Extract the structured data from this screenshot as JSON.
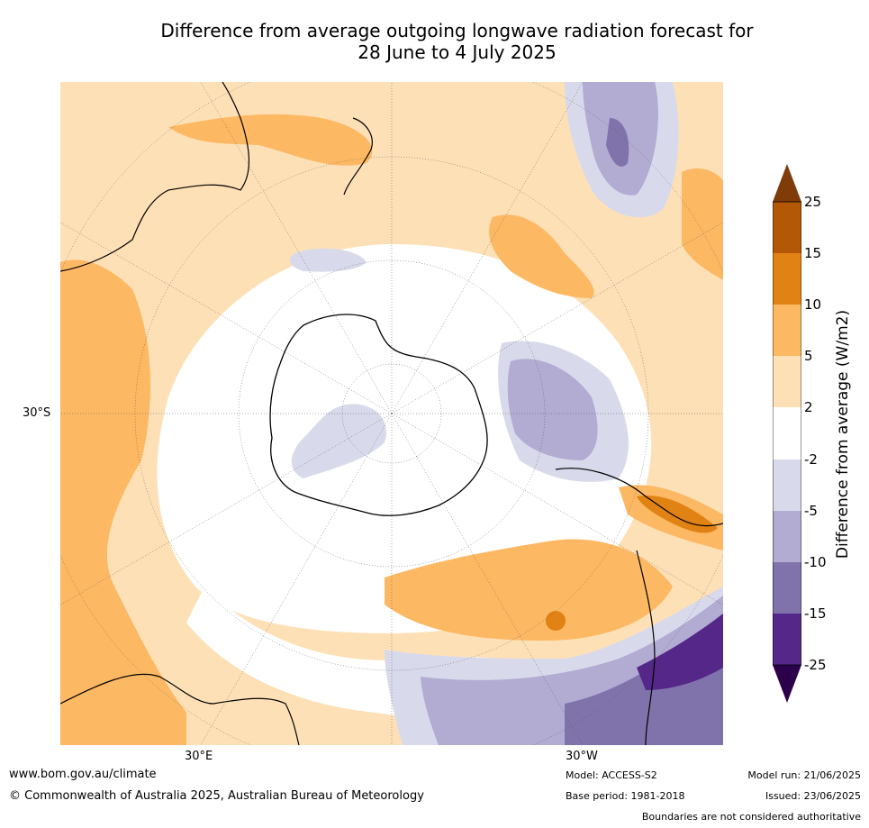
{
  "title_line1": "Difference from average outgoing longwave radiation forecast for",
  "title_line2": "28 June to 4 July 2025",
  "axes": {
    "lat_label": "30°S",
    "lon_label_1": "30°E",
    "lon_label_2": "30°W"
  },
  "colorbar": {
    "title": "Difference from average (W/m2)",
    "ticks": [
      "25",
      "15",
      "10",
      "5",
      "2",
      "-2",
      "-5",
      "-10",
      "-15",
      "-25"
    ],
    "colors": {
      "above_25": "#7f3b08",
      "15_25": "#b35806",
      "10_15": "#e08214",
      "5_10": "#fdb863",
      "2_5": "#fee0b6",
      "neutral": "#ffffff",
      "m5_m2": "#d8daeb",
      "m10_m5": "#b2abd2",
      "m15_m10": "#8073ac",
      "m25_m15": "#542788",
      "below_m25": "#2d004b"
    }
  },
  "footer": {
    "url": "www.bom.gov.au/climate",
    "copyright": "© Commonwealth of Australia 2025, Australian Bureau of Meteorology",
    "model": "Model: ACCESS-S2",
    "base_period": "Base period: 1981-2018",
    "model_run": "Model run: 21/06/2025",
    "issued": "Issued: 23/06/2025",
    "disclaimer": "Boundaries are not considered authoritative"
  }
}
